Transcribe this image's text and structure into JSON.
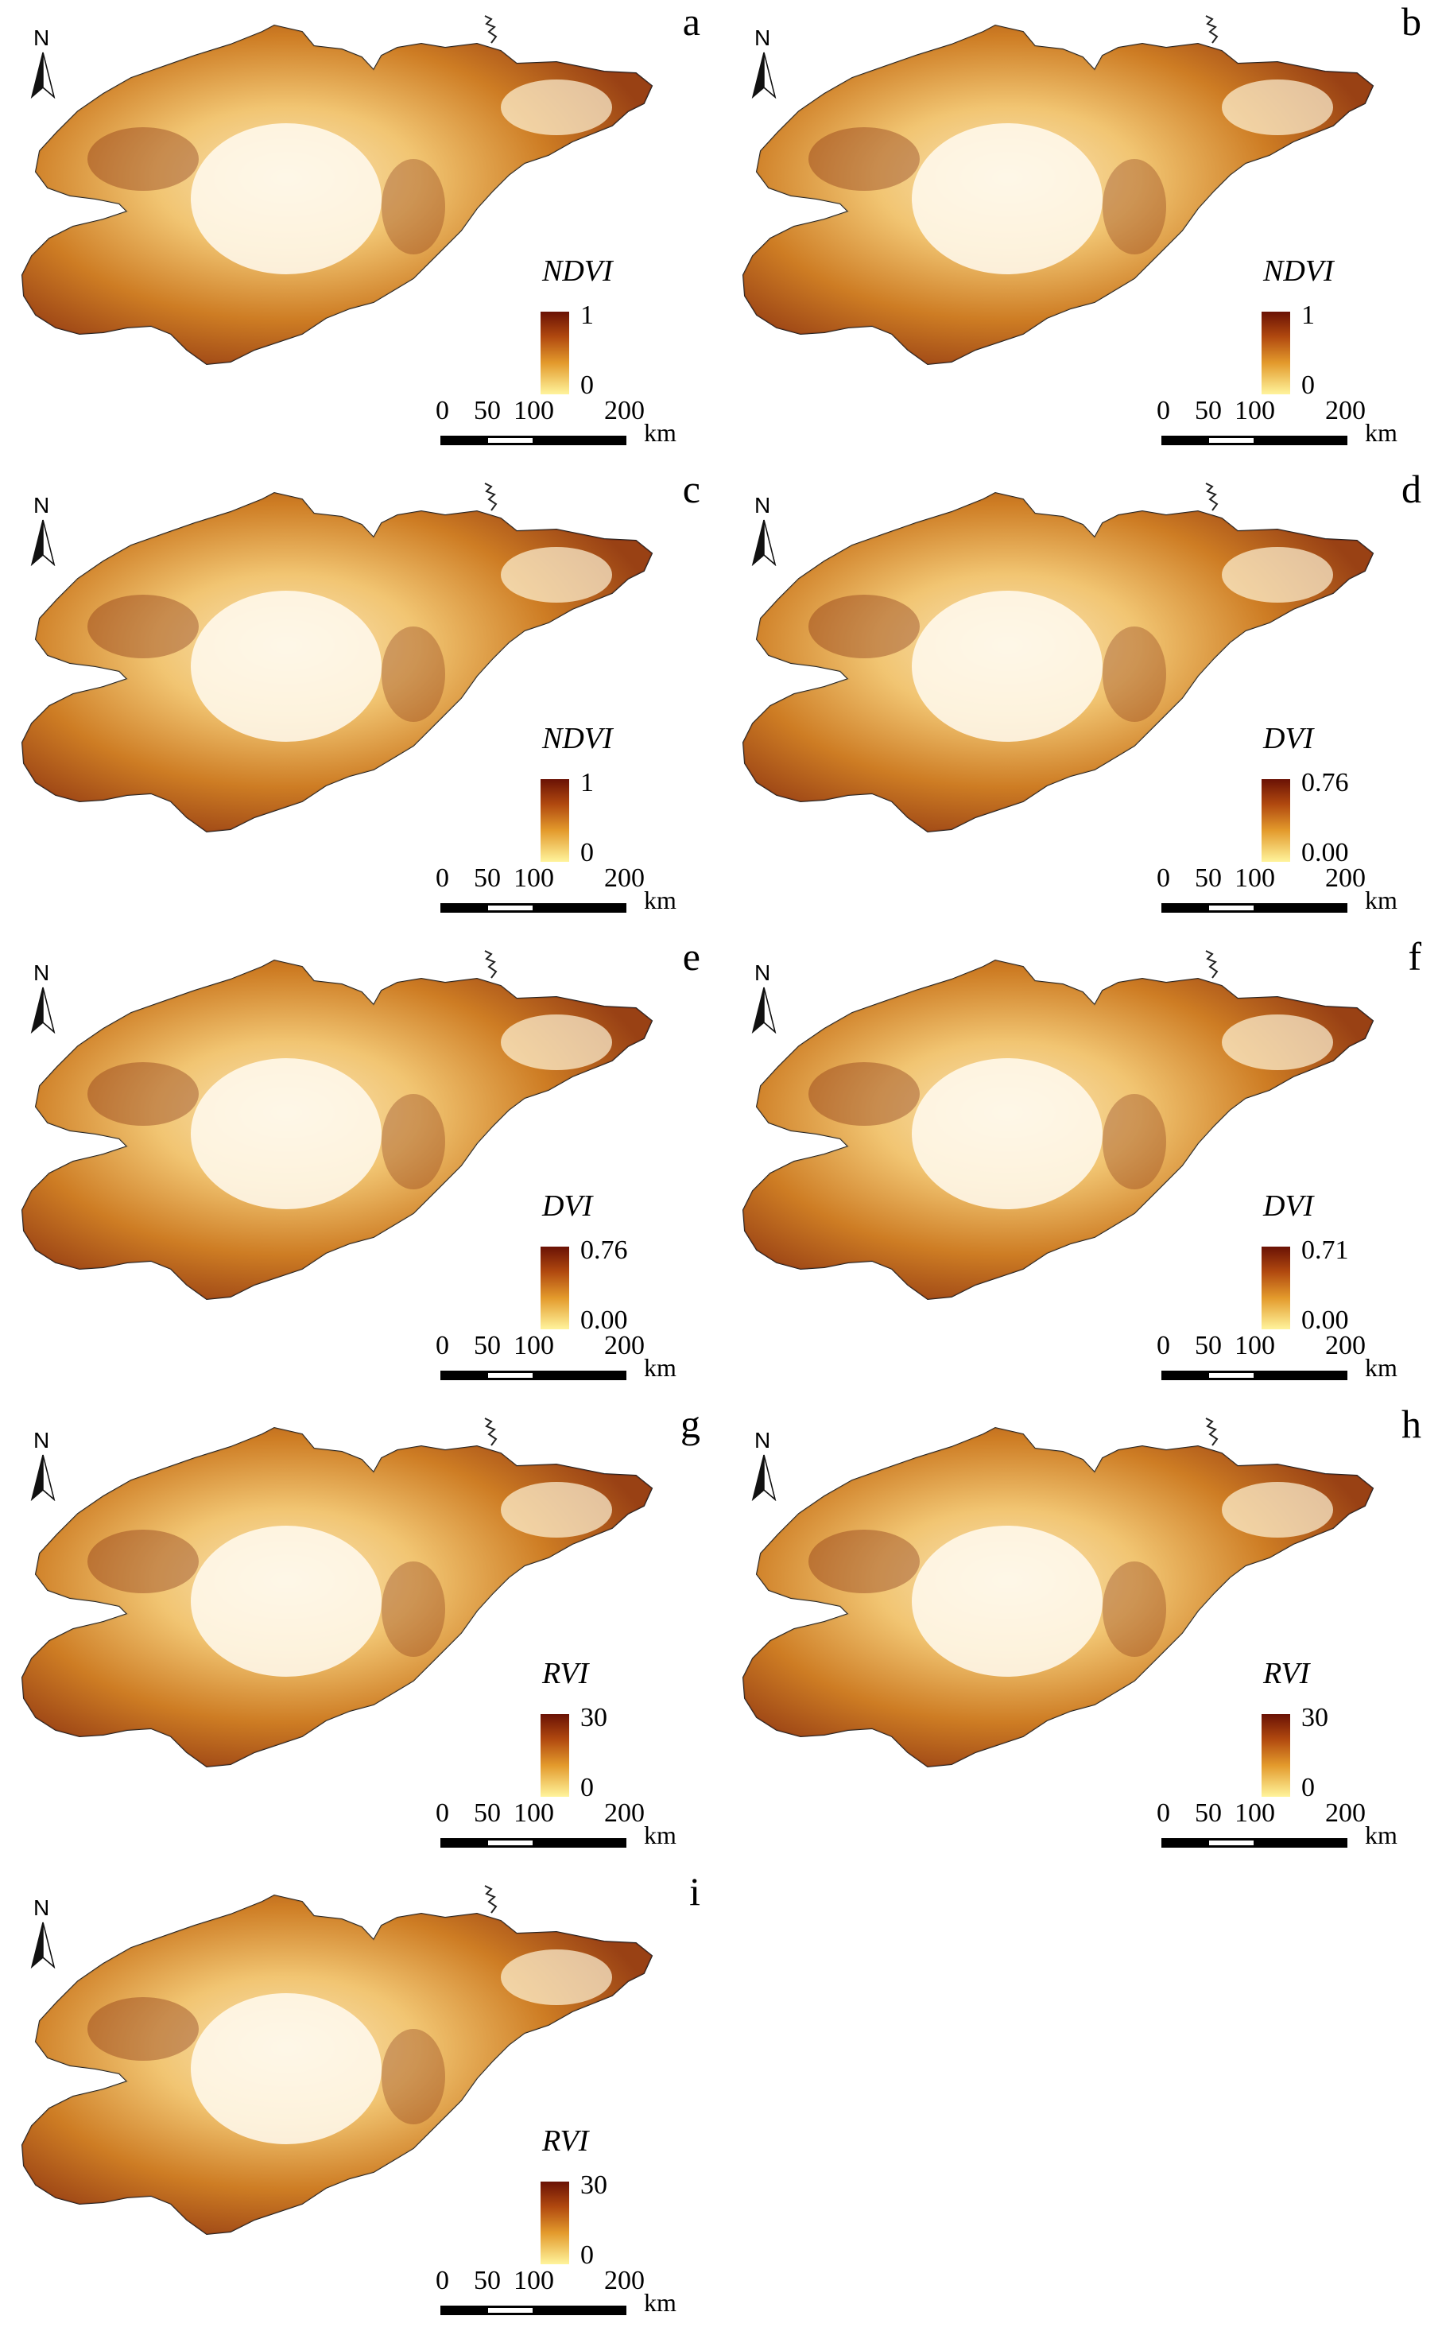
{
  "figure": {
    "panels": [
      {
        "letter": "a",
        "title": "NDVI",
        "max": "1",
        "min": "0"
      },
      {
        "letter": "b",
        "title": "NDVI",
        "max": "1",
        "min": "0"
      },
      {
        "letter": "c",
        "title": "NDVI",
        "max": "1",
        "min": "0"
      },
      {
        "letter": "d",
        "title": "DVI",
        "max": "0.76",
        "min": "0.00"
      },
      {
        "letter": "e",
        "title": "DVI",
        "max": "0.76",
        "min": "0.00"
      },
      {
        "letter": "f",
        "title": "DVI",
        "max": "0.71",
        "min": "0.00"
      },
      {
        "letter": "g",
        "title": "RVI",
        "max": "30",
        "min": "0"
      },
      {
        "letter": "h",
        "title": "RVI",
        "max": "30",
        "min": "0"
      },
      {
        "letter": "i",
        "title": "RVI",
        "max": "30",
        "min": "0"
      }
    ],
    "north_label": "N",
    "scale": {
      "ticks": [
        "0",
        "50",
        "100",
        "200"
      ],
      "unit": "km"
    },
    "colors": {
      "high": "#6a1205",
      "mid": "#e39a2c",
      "low": "#fff49c"
    }
  }
}
